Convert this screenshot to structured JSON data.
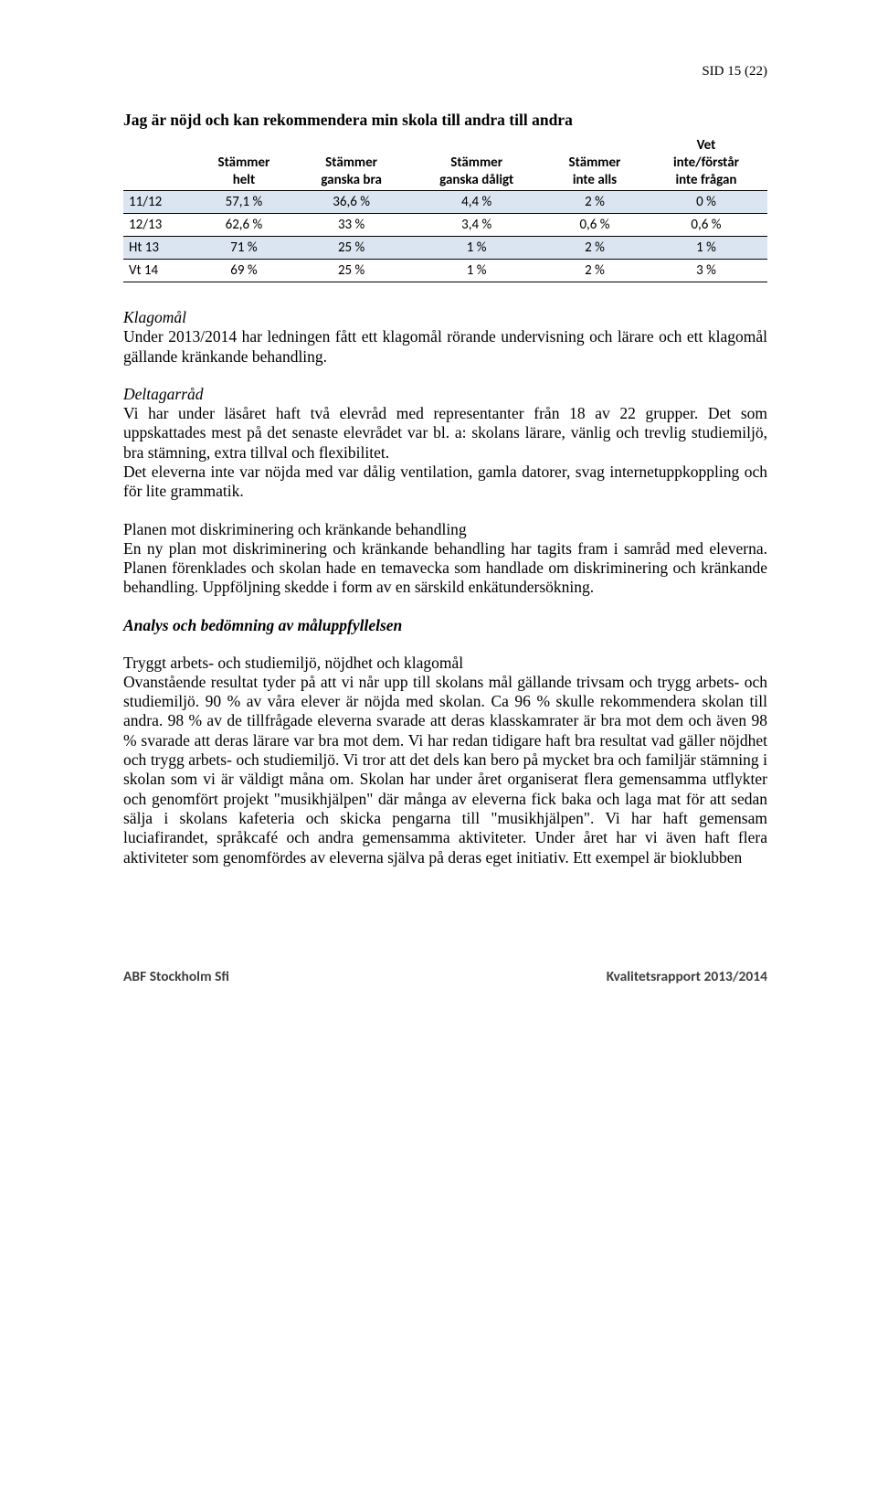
{
  "page_number": "SID 15 (22)",
  "table": {
    "title": "Jag är nöjd och kan rekommendera min skola till andra till andra",
    "columns": [
      [
        "",
        ""
      ],
      [
        "Stämmer",
        "helt"
      ],
      [
        "Stämmer",
        "ganska bra"
      ],
      [
        "Stämmer",
        "ganska dåligt"
      ],
      [
        "Stämmer",
        "inte alls"
      ],
      [
        "Vet",
        "inte/förstår",
        "inte frågan"
      ]
    ],
    "rows": [
      {
        "label": "11/12",
        "cells": [
          "57,1 %",
          "36,6 %",
          "4,4 %",
          "2 %",
          "0 %"
        ],
        "shaded": true
      },
      {
        "label": "12/13",
        "cells": [
          "62,6 %",
          "33 %",
          "3,4 %",
          "0,6 %",
          "0,6 %"
        ],
        "shaded": false
      },
      {
        "label": "Ht 13",
        "cells": [
          "71 %",
          "25 %",
          "1 %",
          "2 %",
          "1 %"
        ],
        "shaded": true
      },
      {
        "label": "Vt 14",
        "cells": [
          "69 %",
          "25 %",
          "1 %",
          "2 %",
          "3 %"
        ],
        "shaded": false
      }
    ],
    "header_bg": "#ffffff",
    "shaded_bg": "#dbe5f1",
    "border_color": "#000000"
  },
  "klagomal": {
    "heading": "Klagomål",
    "text": "Under 2013/2014 har ledningen fått ett klagomål rörande undervisning och lärare och ett klagomål gällande kränkande behandling."
  },
  "deltagarrad": {
    "heading": "Deltagarråd",
    "p1": "Vi har under läsåret haft två elevråd med representanter från 18 av 22 grupper. Det som uppskattades mest på det senaste elevrådet var bl. a: skolans lärare, vänlig och trevlig studiemiljö, bra stämning, extra tillval och flexibilitet.",
    "p2": "Det eleverna inte var nöjda med var dålig ventilation, gamla datorer, svag internetuppkoppling och för lite grammatik."
  },
  "planen": {
    "heading": "Planen mot diskriminering och kränkande behandling",
    "text": "En ny plan mot diskriminering och kränkande behandling har tagits fram i samråd med eleverna. Planen förenklades och skolan hade en temavecka som handlade om diskriminering och kränkande behandling. Uppföljning skedde i form av en särskild enkätundersökning."
  },
  "analys": {
    "heading": "Analys och bedömning av måluppfyllelsen",
    "subhead": "Tryggt arbets- och studiemiljö, nöjdhet och klagomål",
    "text": "Ovanstående resultat tyder på att vi når upp till skolans mål gällande trivsam och trygg arbets- och studiemiljö. 90 % av våra elever är nöjda med skolan. Ca 96 % skulle rekommendera skolan till andra. 98 % av de tillfrågade eleverna svarade att deras klasskamrater är bra mot dem och även 98 % svarade att deras lärare var bra mot dem. Vi har redan tidigare haft bra resultat vad gäller nöjdhet och trygg arbets- och studiemiljö. Vi tror att det dels kan bero på mycket bra och familjär stämning i skolan som vi är väldigt måna om. Skolan har under året organiserat flera gemensamma utflykter och genomfört projekt \"musikhjälpen\" där många av eleverna fick baka och laga mat för att sedan sälja i skolans kafeteria och skicka pengarna till \"musikhjälpen\". Vi har haft gemensam luciafirandet, språkcafé och andra gemensamma aktiviteter. Under året har vi även haft flera aktiviteter som genomfördes av eleverna själva på deras eget initiativ. Ett exempel är bioklubben"
  },
  "footer": {
    "left": "ABF Stockholm Sfi",
    "right": "Kvalitetsrapport 2013/2014"
  }
}
